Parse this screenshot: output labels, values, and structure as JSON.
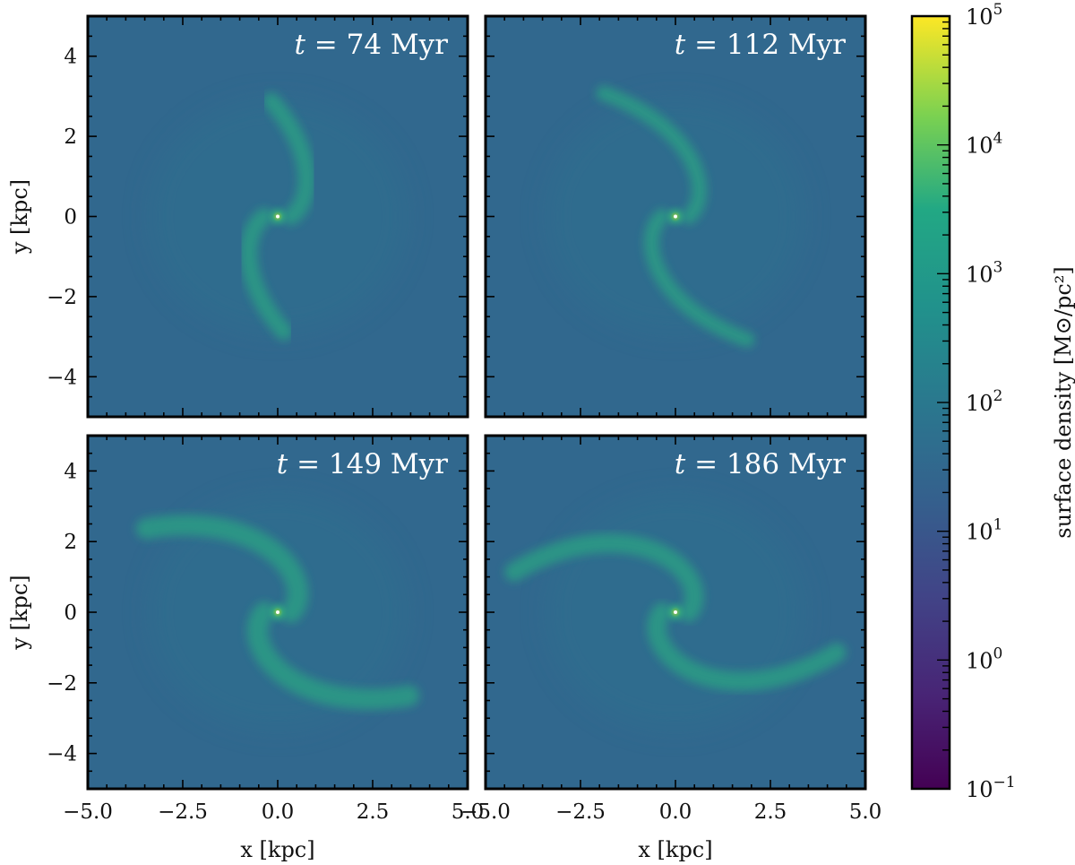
{
  "chart_data": [
    {
      "type": "heatmap",
      "panel": "top-left",
      "time_label": {
        "prefix": "t",
        "rest": " = 74 Myr"
      },
      "xlim": [
        -5.0,
        5.0
      ],
      "ylim": [
        -5.0,
        5.0
      ],
      "xticks": [
        "−5.0",
        "−2.5",
        "0.0",
        "2.5",
        "5.0"
      ],
      "yticks": [
        "4",
        "2",
        "0",
        "−2",
        "−4"
      ],
      "xlabel": "",
      "ylabel": "y [kpc]",
      "arm_pitch_deg": 14,
      "arm_width_kpc": 0.45,
      "arm_extent_kpc": 3.3
    },
    {
      "type": "heatmap",
      "panel": "top-right",
      "time_label": {
        "prefix": "t",
        "rest": " = 112 Myr"
      },
      "xlim": [
        -5.0,
        5.0
      ],
      "ylim": [
        -5.0,
        5.0
      ],
      "xticks": [
        "−5.0",
        "−2.5",
        "0.0",
        "2.5",
        "5.0"
      ],
      "yticks": [
        "4",
        "2",
        "0",
        "−2",
        "−4"
      ],
      "xlabel": "",
      "ylabel": "",
      "arm_pitch_deg": 12,
      "arm_width_kpc": 0.4,
      "arm_extent_kpc": 4.0
    },
    {
      "type": "heatmap",
      "panel": "bottom-left",
      "time_label": {
        "prefix": "t",
        "rest": " = 149 Myr"
      },
      "xlim": [
        -5.0,
        5.0
      ],
      "ylim": [
        -5.0,
        5.0
      ],
      "xticks": [
        "−5.0",
        "−2.5",
        "0.0",
        "2.5",
        "5.0"
      ],
      "yticks": [
        "4",
        "2",
        "0",
        "−2",
        "−4"
      ],
      "xlabel": "x [kpc]",
      "ylabel": "y [kpc]",
      "arm_pitch_deg": 10,
      "arm_width_kpc": 0.55,
      "arm_extent_kpc": 4.2
    },
    {
      "type": "heatmap",
      "panel": "bottom-right",
      "time_label": {
        "prefix": "t",
        "rest": " = 186 Myr"
      },
      "xlim": [
        -5.0,
        5.0
      ],
      "ylim": [
        -5.0,
        5.0
      ],
      "xticks": [
        "−5.0",
        "−2.5",
        "0.0",
        "2.5",
        "5.0"
      ],
      "yticks": [
        "4",
        "2",
        "0",
        "−2",
        "−4"
      ],
      "xlabel": "x [kpc]",
      "ylabel": "",
      "arm_pitch_deg": 9,
      "arm_width_kpc": 0.5,
      "arm_extent_kpc": 4.4
    }
  ],
  "colorbar": {
    "label": "surface density [M⊙/pc²]",
    "scale": "log",
    "range": [
      0.1,
      100000
    ],
    "colormap": "viridis",
    "tick_exponents": [
      "5",
      "4",
      "3",
      "2",
      "1",
      "0",
      "−1"
    ],
    "tick_base": "10"
  },
  "colors": {
    "background_density": "#31688e",
    "arm_density": "#2ba383",
    "center_density": "#b5de2b"
  }
}
